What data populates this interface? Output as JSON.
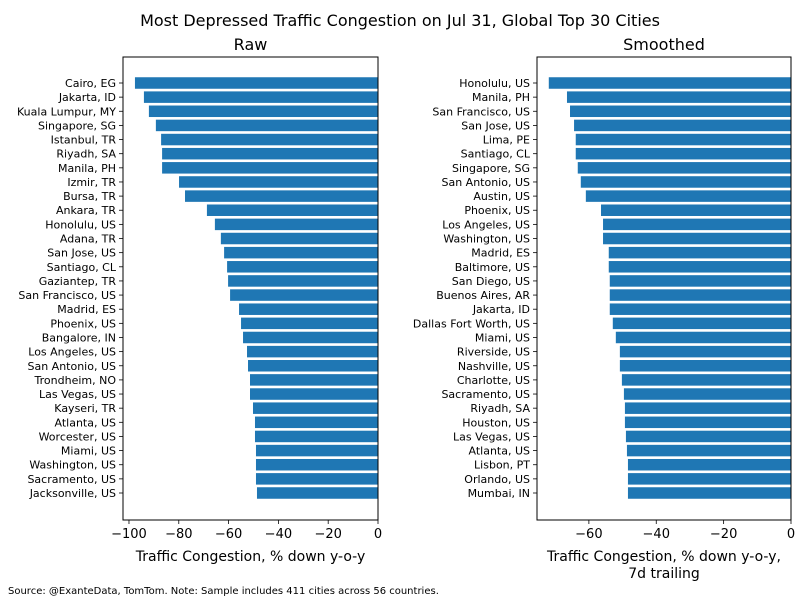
{
  "suptitle": "Most Depressed Traffic Congestion on Jul 31, Global Top 30 Cities",
  "source_note": "Source: @ExanteData, TomTom.   Note: Sample includes 411 cities across 56 countries.",
  "colors": {
    "bar": "#1f77b4"
  },
  "chart_data": [
    {
      "type": "bar",
      "orientation": "horizontal",
      "title": "Raw",
      "xlabel": "Traffic Congestion, % down y-o-y",
      "xlabel2": "",
      "xlim": [
        -102.4,
        0
      ],
      "xticks": [
        -100,
        -80,
        -60,
        -40,
        -20,
        0
      ],
      "xtick_labels": [
        "−100",
        "−80",
        "−60",
        "−40",
        "−20",
        "0"
      ],
      "categories": [
        "Cairo, EG",
        "Jakarta, ID",
        "Kuala Lumpur, MY",
        "Singapore, SG",
        "Istanbul, TR",
        "Riyadh, SA",
        "Manila, PH",
        "Izmir, TR",
        "Bursa, TR",
        "Ankara, TR",
        "Honolulu, US",
        "Adana, TR",
        "San Jose, US",
        "Santiago, CL",
        "Gaziantep, TR",
        "San Francisco, US",
        "Madrid, ES",
        "Phoenix, US",
        "Bangalore, IN",
        "Los Angeles, US",
        "San Antonio, US",
        "Trondheim, NO",
        "Las Vegas, US",
        "Kayseri, TR",
        "Atlanta, US",
        "Worcester, US",
        "Miami, US",
        "Washington, US",
        "Sacramento, US",
        "Jacksonville, US"
      ],
      "values": [
        -97.6,
        -94.0,
        -92.0,
        -89.2,
        -87.1,
        -86.7,
        -86.7,
        -79.9,
        -77.5,
        -68.7,
        -65.5,
        -63.1,
        -61.8,
        -60.6,
        -60.2,
        -59.4,
        -55.8,
        -55.0,
        -54.2,
        -52.6,
        -52.2,
        -51.4,
        -51.4,
        -50.2,
        -49.4,
        -49.4,
        -49.0,
        -49.0,
        -49.0,
        -48.6
      ]
    },
    {
      "type": "bar",
      "orientation": "horizontal",
      "title": "Smoothed",
      "xlabel": "Traffic Congestion, % down y-o-y,",
      "xlabel2": "7d trailing",
      "xlim": [
        -75.4,
        0
      ],
      "xticks": [
        -60,
        -40,
        -20,
        0
      ],
      "xtick_labels": [
        "−60",
        "−40",
        "−20",
        "0"
      ],
      "categories": [
        "Honolulu, US",
        "Manila, PH",
        "San Francisco, US",
        "San Jose, US",
        "Lima, PE",
        "Santiago, CL",
        "Singapore, SG",
        "San Antonio, US",
        "Austin, US",
        "Phoenix, US",
        "Los Angeles, US",
        "Washington, US",
        "Madrid, ES",
        "Baltimore, US",
        "San Diego, US",
        "Buenos Aires, AR",
        "Jakarta, ID",
        "Dallas Fort Worth, US",
        "Miami, US",
        "Riverside, US",
        "Nashville, US",
        "Charlotte, US",
        "Sacramento, US",
        "Riyadh, SA",
        "Houston, US",
        "Las Vegas, US",
        "Atlanta, US",
        "Lisbon, PT",
        "Orlando, US",
        "Mumbai, IN"
      ],
      "values": [
        -71.9,
        -66.5,
        -65.6,
        -64.4,
        -63.9,
        -63.9,
        -63.3,
        -62.4,
        -60.9,
        -56.4,
        -55.8,
        -55.8,
        -54.1,
        -54.1,
        -53.8,
        -53.8,
        -53.8,
        -52.9,
        -52.0,
        -50.8,
        -50.8,
        -50.2,
        -49.6,
        -49.3,
        -49.3,
        -49.0,
        -48.7,
        -48.4,
        -48.4,
        -48.4
      ]
    }
  ]
}
